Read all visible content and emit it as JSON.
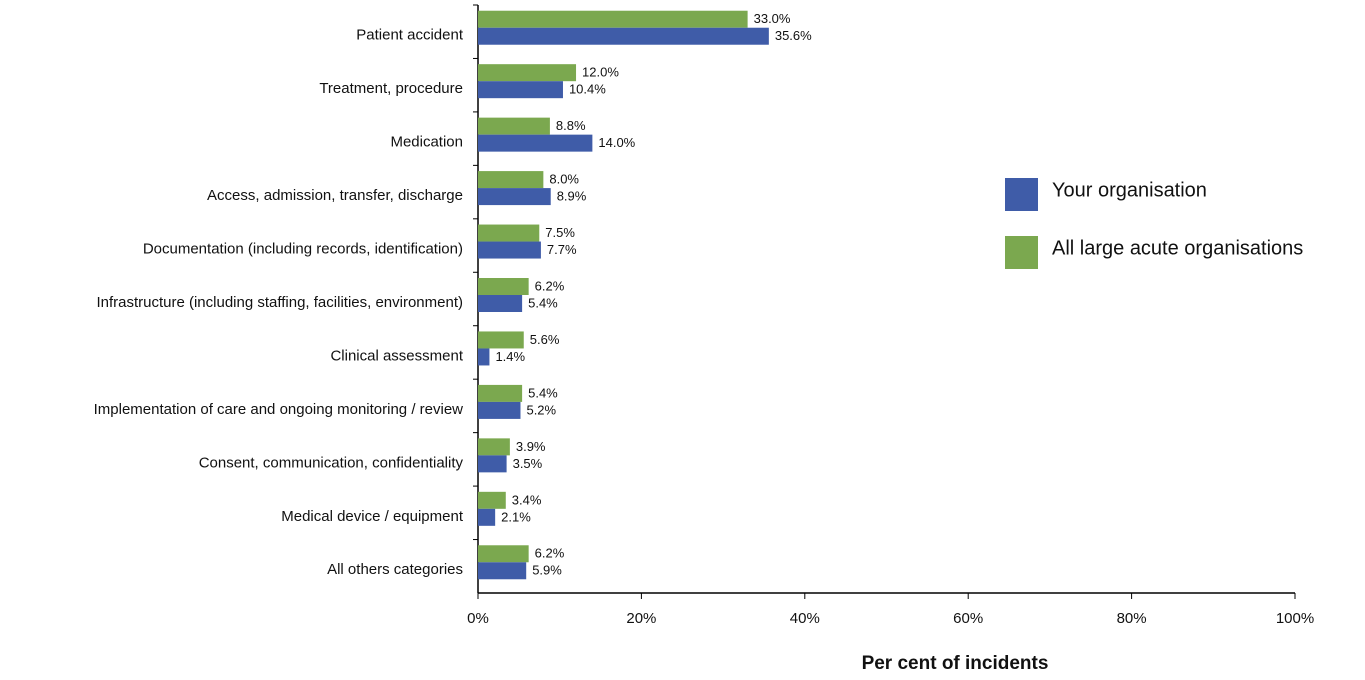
{
  "chart_data": {
    "type": "hbar",
    "xlabel": "Per cent of incidents",
    "categories": [
      "Patient accident",
      "Treatment, procedure",
      "Medication",
      "Access, admission, transfer, discharge",
      "Documentation (including records, identification)",
      "Infrastructure (including staffing, facilities, environment)",
      "Clinical assessment",
      "Implementation of care and ongoing monitoring / review",
      "Consent, communication, confidentiality",
      "Medical device / equipment",
      "All others categories"
    ],
    "series": [
      {
        "name": "Your organisation",
        "color": "#3f5ca8",
        "values": [
          35.6,
          10.4,
          14.0,
          8.9,
          7.7,
          5.4,
          1.4,
          5.2,
          3.5,
          2.1,
          5.9
        ],
        "value_labels": [
          "35.6%",
          "10.4%",
          "14.0%",
          "8.9%",
          "7.7%",
          "5.4%",
          "1.4%",
          "5.2%",
          "3.5%",
          "2.1%",
          "5.9%"
        ]
      },
      {
        "name": "All large acute organisations",
        "color": "#7ba84f",
        "values": [
          33.0,
          12.0,
          8.8,
          8.0,
          7.5,
          6.2,
          5.6,
          5.4,
          3.9,
          3.4,
          6.2
        ],
        "value_labels": [
          "33.0%",
          "12.0%",
          "8.8%",
          "8.0%",
          "7.5%",
          "6.2%",
          "5.6%",
          "5.4%",
          "3.9%",
          "3.4%",
          "6.2%"
        ]
      }
    ],
    "xlim": [
      0,
      100
    ],
    "xticks": [
      {
        "value": 0,
        "label": "0%"
      },
      {
        "value": 20,
        "label": "20%"
      },
      {
        "value": 40,
        "label": "40%"
      },
      {
        "value": 60,
        "label": "60%"
      },
      {
        "value": 80,
        "label": "80%"
      },
      {
        "value": 100,
        "label": "100%"
      }
    ],
    "legend": "right"
  }
}
